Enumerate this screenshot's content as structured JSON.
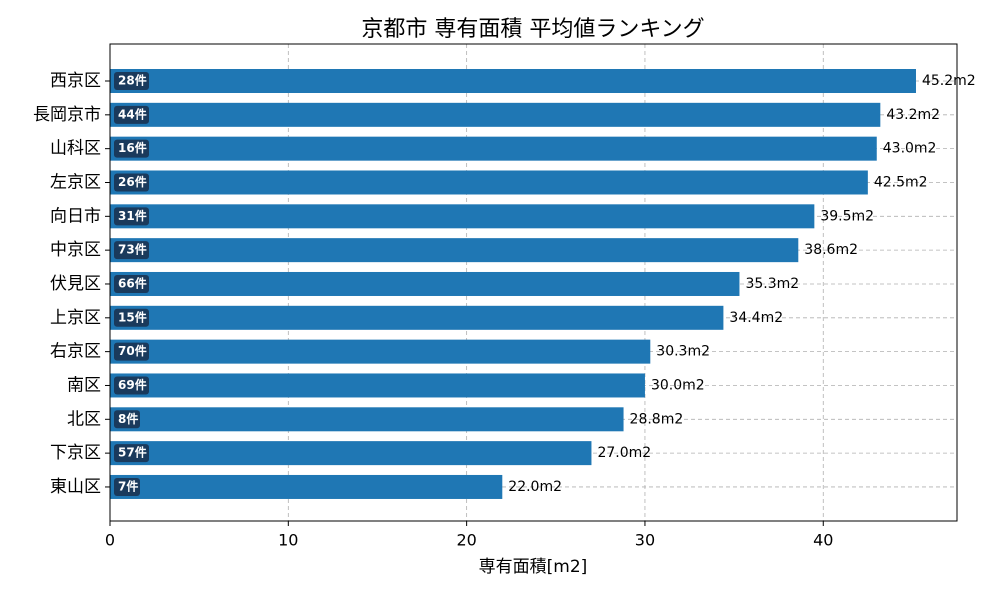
{
  "chart_data": {
    "type": "barh",
    "title": "京都市 専有面積 平均値ランキング",
    "x_label": "専有面積[m2]",
    "categories": [
      "西京区",
      "長岡京市",
      "山科区",
      "左京区",
      "向日市",
      "中京区",
      "伏見区",
      "上京区",
      "右京区",
      "南区",
      "北区",
      "下京区",
      "東山区"
    ],
    "values": [
      45.2,
      43.2,
      43.0,
      42.5,
      39.5,
      38.6,
      35.3,
      34.4,
      30.3,
      30.0,
      28.8,
      27.0,
      22.0
    ],
    "value_labels": [
      "45.2m2",
      "43.2m2",
      "43.0m2",
      "42.5m2",
      "39.5m2",
      "38.6m2",
      "35.3m2",
      "34.4m2",
      "30.3m2",
      "30.0m2",
      "28.8m2",
      "27.0m2",
      "22.0m2"
    ],
    "count_labels": [
      "28件",
      "44件",
      "16件",
      "26件",
      "31件",
      "73件",
      "66件",
      "15件",
      "70件",
      "69件",
      "8件",
      "57件",
      "7件"
    ],
    "color": "#1f77b4",
    "badge_color": "#1a3a5c",
    "xlim": [
      0,
      47.5
    ],
    "xticks": [
      0,
      10,
      20,
      30,
      40
    ],
    "grid": true
  }
}
